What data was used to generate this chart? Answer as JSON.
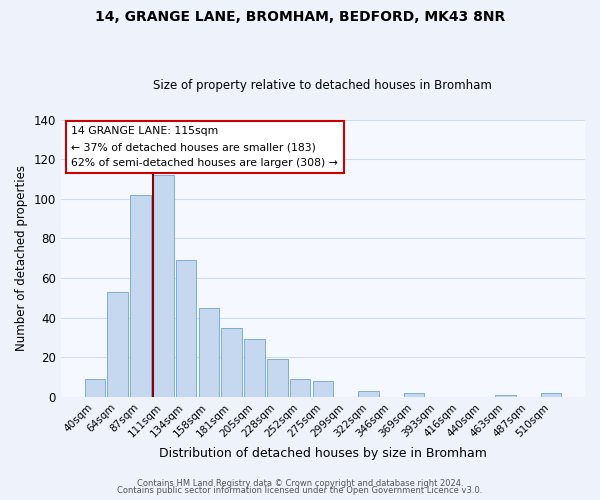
{
  "title1": "14, GRANGE LANE, BROMHAM, BEDFORD, MK43 8NR",
  "title2": "Size of property relative to detached houses in Bromham",
  "xlabel": "Distribution of detached houses by size in Bromham",
  "ylabel": "Number of detached properties",
  "bar_labels": [
    "40sqm",
    "64sqm",
    "87sqm",
    "111sqm",
    "134sqm",
    "158sqm",
    "181sqm",
    "205sqm",
    "228sqm",
    "252sqm",
    "275sqm",
    "299sqm",
    "322sqm",
    "346sqm",
    "369sqm",
    "393sqm",
    "416sqm",
    "440sqm",
    "463sqm",
    "487sqm",
    "510sqm"
  ],
  "bar_values": [
    9,
    53,
    102,
    112,
    69,
    45,
    35,
    29,
    19,
    9,
    8,
    0,
    3,
    0,
    2,
    0,
    0,
    0,
    1,
    0,
    2
  ],
  "bar_color": "#c5d8f0",
  "bar_edgecolor": "#7bafd4",
  "vline_x_index": 3,
  "vline_color": "#8b0000",
  "annotation_title": "14 GRANGE LANE: 115sqm",
  "annotation_line1": "← 37% of detached houses are smaller (183)",
  "annotation_line2": "62% of semi-detached houses are larger (308) →",
  "annotation_box_edgecolor": "#cc0000",
  "ylim": [
    0,
    140
  ],
  "yticks": [
    0,
    20,
    40,
    60,
    80,
    100,
    120,
    140
  ],
  "footer1": "Contains HM Land Registry data © Crown copyright and database right 2024.",
  "footer2": "Contains public sector information licensed under the Open Government Licence v3.0.",
  "bg_color": "#eef2fa",
  "plot_bg_color": "#f5f8fe"
}
